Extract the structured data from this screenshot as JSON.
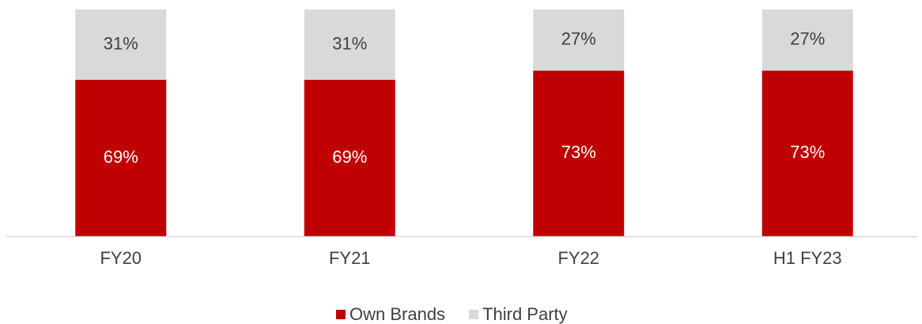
{
  "chart_data": {
    "type": "stacked_bar",
    "categories": [
      "FY20",
      "FY21",
      "FY22",
      "H1 FY23"
    ],
    "series": [
      {
        "name": "Own Brands",
        "color": "#c00000",
        "values": [
          69,
          69,
          73,
          73
        ],
        "value_labels": [
          "69%",
          "69%",
          "73%",
          "73%"
        ],
        "label_color": "#ffffff"
      },
      {
        "name": "Third Party",
        "color": "#d9d9d9",
        "values": [
          31,
          31,
          27,
          27
        ],
        "value_labels": [
          "31%",
          "31%",
          "27%",
          "27%"
        ],
        "label_color": "#404040"
      }
    ],
    "ylim": [
      0,
      100
    ],
    "legend": "bottom"
  }
}
